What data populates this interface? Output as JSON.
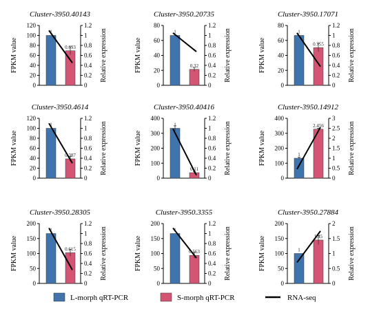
{
  "chart_data": {
    "layout": "3x3 grid",
    "legend": {
      "placement": "bottom",
      "items": [
        {
          "label": "L-morph  qRT-PCR",
          "color": "#3f74ad",
          "kind": "bar"
        },
        {
          "label": "S-morph  qRT-PCR",
          "color": "#d45573",
          "kind": "bar"
        },
        {
          "label": "RNA-seq",
          "color": "#000000",
          "kind": "line"
        }
      ]
    },
    "panels": [
      {
        "title": "Cluster-3950.40143",
        "type": "bar+line",
        "ylabel": "FPKM value",
        "y2label": "Relative expression",
        "ylim": [
          0,
          120
        ],
        "yticks": [
          0,
          20,
          40,
          60,
          80,
          100,
          120
        ],
        "y2lim": [
          0,
          1.2
        ],
        "y2ticks": [
          "0",
          "0.2",
          "0.4",
          "0.6",
          "0.8",
          "1",
          "1.2"
        ],
        "bars": [
          {
            "value": 1,
            "label": "1",
            "error": 0
          },
          {
            "value": 0.693,
            "label": "0.693",
            "error": 0.08
          }
        ],
        "fpkm": [
          110,
          45
        ]
      },
      {
        "title": "Cluster-3950.20735",
        "type": "bar+line",
        "ylabel": "FPKM value",
        "y2label": "Relative expression",
        "ylim": [
          0,
          80
        ],
        "yticks": [
          0,
          20,
          40,
          60,
          80
        ],
        "y2lim": [
          0,
          1.2
        ],
        "y2ticks": [
          "0",
          "0.2",
          "0.4",
          "0.6",
          "0.8",
          "1",
          "1.2"
        ],
        "bars": [
          {
            "value": 1,
            "label": "1",
            "error": 0
          },
          {
            "value": 0.32,
            "label": "0.32",
            "error": 0.04
          }
        ],
        "fpkm": [
          70,
          45
        ]
      },
      {
        "title": "Cluster-3950.17071",
        "type": "bar+line",
        "ylabel": "FPKM value",
        "y2label": "Relative expression",
        "ylim": [
          0,
          80
        ],
        "yticks": [
          0,
          20,
          40,
          60,
          80
        ],
        "y2lim": [
          0,
          1.2
        ],
        "y2ticks": [
          "0",
          "0.2",
          "0.4",
          "0.6",
          "0.8",
          "1",
          "1.2"
        ],
        "bars": [
          {
            "value": 1,
            "label": "1",
            "error": 0
          },
          {
            "value": 0.755,
            "label": "0.755",
            "error": 0.08
          }
        ],
        "fpkm": [
          70,
          25
        ]
      },
      {
        "title": "Cluster-3950.4614",
        "type": "bar+line",
        "ylabel": "FPKM value",
        "y2label": "Relative expression",
        "ylim": [
          0,
          120
        ],
        "yticks": [
          0,
          20,
          40,
          60,
          80,
          100,
          120
        ],
        "y2lim": [
          0,
          1.2
        ],
        "y2ticks": [
          "0",
          "0.2",
          "0.4",
          "0.6",
          "0.8",
          "1",
          "1.2"
        ],
        "bars": [
          {
            "value": 1,
            "label": "1",
            "error": 0
          },
          {
            "value": 0.387,
            "label": "0.387",
            "error": 0.05
          }
        ],
        "fpkm": [
          110,
          30
        ]
      },
      {
        "title": "Cluster-3950.40416",
        "type": "bar+line",
        "ylabel": "FPKM value",
        "y2label": "Relative expression",
        "ylim": [
          0,
          400
        ],
        "yticks": [
          0,
          100,
          200,
          300,
          400
        ],
        "y2lim": [
          0,
          1.2
        ],
        "y2ticks": [
          "0",
          "0.2",
          "0.4",
          "0.6",
          "0.8",
          "1",
          "1.2"
        ],
        "bars": [
          {
            "value": 1,
            "label": "1",
            "error": 0.05
          },
          {
            "value": 0.11,
            "label": "0.11",
            "error": 0.02
          }
        ],
        "fpkm": [
          330,
          20
        ]
      },
      {
        "title": "Cluster-3950.14912",
        "type": "bar+line",
        "ylabel": "FPKM value",
        "y2label": "Relative expression",
        "ylim": [
          0,
          400
        ],
        "yticks": [
          0,
          100,
          200,
          300,
          400
        ],
        "y2lim": [
          0,
          3
        ],
        "y2ticks": [
          "0",
          "0.5",
          "1",
          "1.5",
          "2",
          "2.5",
          "3"
        ],
        "bars": [
          {
            "value": 1,
            "label": "1",
            "error": 0.05
          },
          {
            "value": 2.456,
            "label": "2.456",
            "error": 0.05
          }
        ],
        "fpkm": [
          60,
          340
        ]
      },
      {
        "title": "Cluster-3950.28305",
        "type": "bar+line",
        "ylabel": "FPKM value",
        "y2label": "Relative expression",
        "ylim": [
          0,
          200
        ],
        "yticks": [
          0,
          50,
          100,
          150,
          200
        ],
        "y2lim": [
          0,
          1.2
        ],
        "y2ticks": [
          "0",
          "0.2",
          "0.4",
          "0.6",
          "0.8",
          "1",
          "1.2"
        ],
        "bars": [
          {
            "value": 1,
            "label": "1",
            "error": 0
          },
          {
            "value": 0.615,
            "label": "0.615",
            "error": 0.07
          }
        ],
        "fpkm": [
          185,
          45
        ]
      },
      {
        "title": "Cluster-3950.3355",
        "type": "bar+line",
        "ylabel": "FPKM value",
        "y2label": "Relative expression",
        "ylim": [
          0,
          200
        ],
        "yticks": [
          0,
          50,
          100,
          150,
          200
        ],
        "y2lim": [
          0,
          1.2
        ],
        "y2ticks": [
          "0",
          "0.2",
          "0.4",
          "0.6",
          "0.8",
          "1",
          "1.2"
        ],
        "bars": [
          {
            "value": 1,
            "label": "1",
            "error": 0
          },
          {
            "value": 0.563,
            "label": "0.563",
            "error": 0.06
          }
        ],
        "fpkm": [
          185,
          85
        ]
      },
      {
        "title": "Cluster-3950.27884",
        "type": "bar+line",
        "ylabel": "FPKM value",
        "y2label": "Relative expression",
        "ylim": [
          0,
          200
        ],
        "yticks": [
          0,
          50,
          100,
          150,
          200
        ],
        "y2lim": [
          0,
          2
        ],
        "y2ticks": [
          "0",
          "0.5",
          "1",
          "1.5",
          "2"
        ],
        "bars": [
          {
            "value": 1,
            "label": "1",
            "error": 0
          },
          {
            "value": 1.45,
            "label": "1.45",
            "error": 0.15
          }
        ],
        "fpkm": [
          70,
          175
        ]
      }
    ]
  }
}
